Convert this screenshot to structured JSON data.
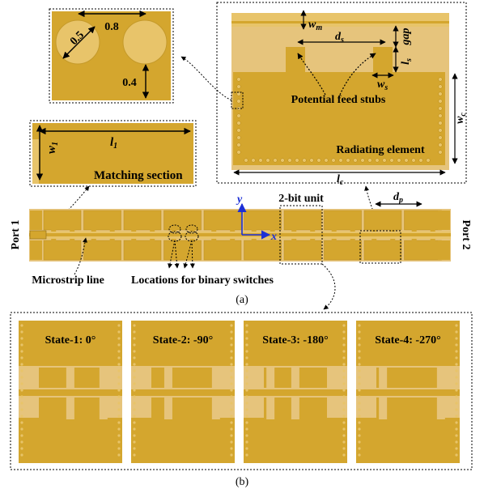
{
  "colors": {
    "copper": "#d4a62e",
    "copper_dark": "#b98b1a",
    "light": "#e8c46a",
    "substrate": "#e6c47c",
    "axis": "#1c2fd6"
  },
  "panel_a": {
    "caption": "(a)",
    "port1": "Port 1",
    "port2": "Port 2",
    "microstrip_label": "Microstrip line",
    "switch_label": "Locations for binary switches",
    "unit_label": "2-bit unit",
    "axis_x": "x",
    "axis_y": "y",
    "dp_label": "d",
    "dp_sub": "p"
  },
  "circle_inset": {
    "dim_08": "0.8",
    "dim_05": "0.5",
    "dim_04": "0.4"
  },
  "matching_inset": {
    "title": "Matching section",
    "l1": "l",
    "l1_sub": "1",
    "w1": "w",
    "w1_sub": "1"
  },
  "element_inset": {
    "wm": "w",
    "wm_sub": "m",
    "ds": "d",
    "ds_sub": "s",
    "gap": "gap",
    "ls": "l",
    "ls_sub": "s",
    "ws": "w",
    "ws_sub": "s",
    "wc": "w",
    "wc_sub": "c",
    "lc": "l",
    "lc_sub": "c",
    "feed_label": "Potential feed stubs",
    "element_label": "Radiating element"
  },
  "panel_b": {
    "caption": "(b)",
    "states": [
      "State-1: 0°",
      "State-2: -90°",
      "State-3: -180°",
      "State-4: -270°"
    ]
  }
}
